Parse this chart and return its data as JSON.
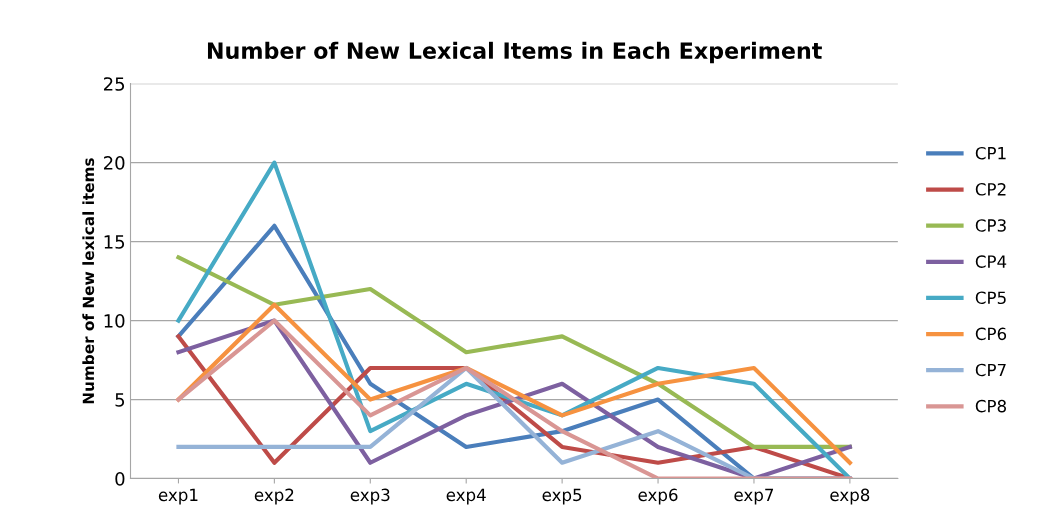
{
  "chart_data": {
    "type": "line",
    "title": "Number of New Lexical Items in Each Experiment",
    "ylabel": "Number of New lexical items",
    "categories": [
      "exp1",
      "exp2",
      "exp3",
      "exp4",
      "exp5",
      "exp6",
      "exp7",
      "exp8"
    ],
    "series": [
      {
        "name": "CP1",
        "color": "#4a7ebb",
        "values": [
          9,
          16,
          6,
          2,
          3,
          5,
          0,
          0
        ]
      },
      {
        "name": "CP2",
        "color": "#be4b48",
        "values": [
          9,
          1,
          7,
          7,
          2,
          1,
          2,
          0
        ]
      },
      {
        "name": "CP3",
        "color": "#98b954",
        "values": [
          14,
          11,
          12,
          8,
          9,
          6,
          2,
          2
        ]
      },
      {
        "name": "CP4",
        "color": "#7d60a0",
        "values": [
          8,
          10,
          1,
          4,
          6,
          2,
          0,
          2
        ]
      },
      {
        "name": "CP5",
        "color": "#46aac5",
        "values": [
          10,
          20,
          3,
          6,
          4,
          7,
          6,
          0
        ]
      },
      {
        "name": "CP6",
        "color": "#f69240",
        "values": [
          5,
          11,
          5,
          7,
          4,
          6,
          7,
          1
        ]
      },
      {
        "name": "CP7",
        "color": "#95b3d7",
        "values": [
          2,
          2,
          2,
          7,
          1,
          3,
          0,
          0
        ]
      },
      {
        "name": "CP8",
        "color": "#d99694",
        "values": [
          5,
          10,
          4,
          7,
          3,
          0,
          0,
          0
        ]
      }
    ],
    "ylim": [
      0,
      25
    ],
    "yticks": [
      0,
      5,
      10,
      15,
      20,
      25
    ],
    "grid": "y",
    "legend": "right",
    "marker": "none",
    "line_style": "solid"
  }
}
